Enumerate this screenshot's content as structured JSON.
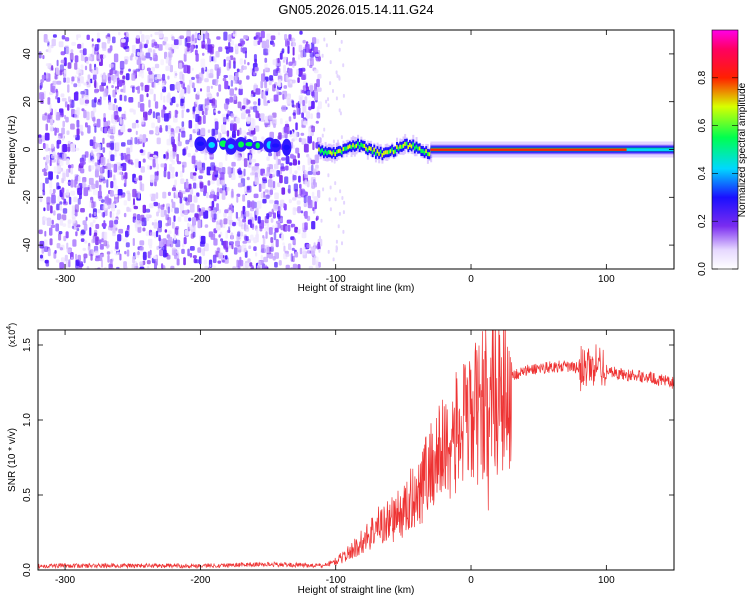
{
  "title": "GN05.2026.015.14.11.G24",
  "chart_data": [
    {
      "type": "heatmap",
      "name": "spectrogram",
      "xlabel": "Height of straight line (km)",
      "ylabel": "Frequency (Hz)",
      "xlim": [
        -320,
        150
      ],
      "ylim": [
        -50,
        50
      ],
      "xticks": [
        -300,
        -200,
        -100,
        0,
        100
      ],
      "yticks": [
        -40,
        -20,
        0,
        20,
        40
      ],
      "colorbar": {
        "label": "Normalized spectral amplitude",
        "range": [
          0,
          1
        ],
        "ticks": [
          "0.0",
          "0.2",
          "0.4",
          "0.6",
          "0.8"
        ],
        "colormap": "white-violet-blue-cyan-green-yellow-red-magenta"
      },
      "features": {
        "noise_region_x": [
          -320,
          -113
        ],
        "signal_band_x": [
          -113,
          150
        ],
        "carrier_frequency_hz": 0
      }
    },
    {
      "type": "line",
      "name": "snr",
      "xlabel": "Height of straight line (km)",
      "ylabel": "SNR (10 * v/v)",
      "y_multiplier": "(x10",
      "y_multiplier_exp": "4",
      "xlim": [
        -320,
        150
      ],
      "ylim": [
        0,
        1.6
      ],
      "xticks": [
        -300,
        -200,
        -100,
        0,
        100
      ],
      "yticks": [
        "0.0",
        "0.5",
        "1.0",
        "1.5"
      ],
      "color": "#ee3333",
      "envelope_x": [
        -320,
        -250,
        -200,
        -150,
        -110,
        -100,
        -90,
        -80,
        -70,
        -60,
        -50,
        -40,
        -30,
        -20,
        -10,
        0,
        10,
        20,
        30,
        40,
        50,
        60,
        70,
        80,
        90,
        100,
        110,
        120,
        130,
        140,
        150
      ],
      "envelope_y": [
        0.03,
        0.03,
        0.03,
        0.04,
        0.03,
        0.06,
        0.12,
        0.2,
        0.3,
        0.35,
        0.4,
        0.55,
        0.72,
        0.85,
        0.95,
        1.05,
        1.15,
        1.25,
        1.3,
        1.33,
        1.35,
        1.36,
        1.36,
        1.35,
        1.36,
        1.34,
        1.31,
        1.3,
        1.29,
        1.27,
        1.25
      ]
    }
  ]
}
